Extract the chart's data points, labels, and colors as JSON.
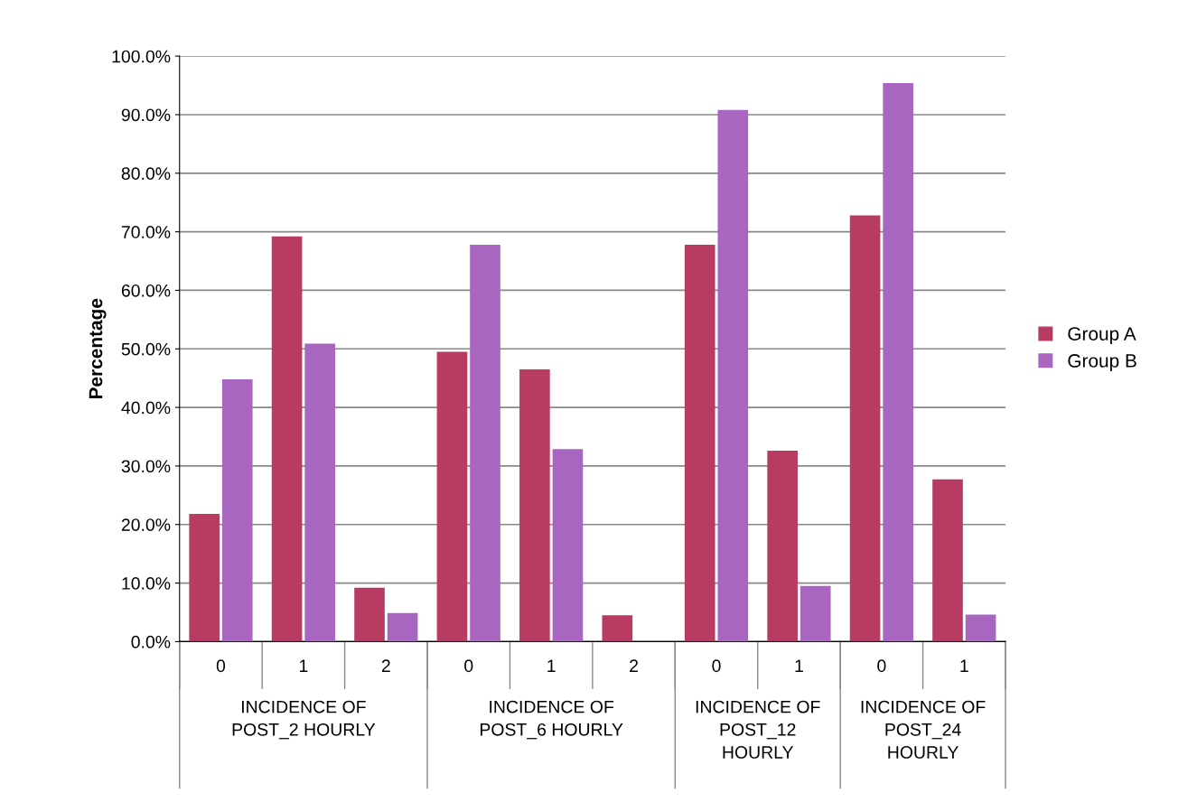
{
  "chart_data": {
    "type": "bar",
    "ylabel": "Percentage",
    "categories": [
      "0",
      "1",
      "2",
      "0",
      "1",
      "2",
      "0",
      "1",
      "0",
      "1"
    ],
    "series": [
      {
        "name": "Group A",
        "color": "#b83b62",
        "values": [
          21.8,
          69.2,
          9.2,
          49.5,
          46.5,
          4.5,
          67.8,
          32.6,
          72.8,
          27.7
        ]
      },
      {
        "name": "Group B",
        "color": "#a966c0",
        "values": [
          44.8,
          50.9,
          4.9,
          67.8,
          32.9,
          0,
          90.8,
          9.5,
          95.4,
          4.6
        ]
      }
    ],
    "annotations": [
      "INCIDENCE OF\nPOST_2 HOURLY",
      "INCIDENCE OF\nPOST_6 HOURLY",
      "INCIDENCE OF\nPOST_12\nHOURLY",
      "INCIDENCE OF\nPOST_24\nHOURLY"
    ],
    "ylim": [
      0,
      100
    ],
    "yticks": [
      {
        "value": 0,
        "label": "0.0%"
      },
      {
        "value": 10,
        "label": "10.0%"
      },
      {
        "value": 20,
        "label": "20.0%"
      },
      {
        "value": 30,
        "label": "30.0%"
      },
      {
        "value": 40,
        "label": "40.0%"
      },
      {
        "value": 50,
        "label": "50.0%"
      },
      {
        "value": 60,
        "label": "60.0%"
      },
      {
        "value": 70,
        "label": "70.0%"
      },
      {
        "value": 80,
        "label": "80.0%"
      },
      {
        "value": 90,
        "label": "90.0%"
      },
      {
        "value": 100,
        "label": "100.0%"
      }
    ],
    "grid": "y",
    "legend": "right"
  }
}
